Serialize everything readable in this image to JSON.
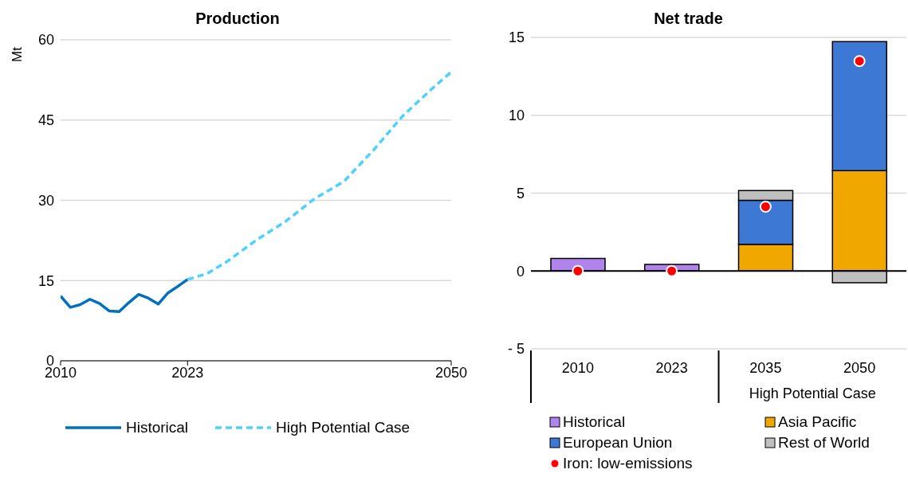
{
  "chart_data": [
    {
      "type": "line",
      "title": "Production",
      "ylabel": "Mt",
      "xlim": [
        2010,
        2050
      ],
      "xticks": [
        2010,
        2023,
        2050
      ],
      "ylim": [
        0,
        60
      ],
      "yticks": [
        0,
        15,
        30,
        45,
        60
      ],
      "grid": "y",
      "legend": "bottom",
      "series": [
        {
          "name": "Historical",
          "color": "#0070c0",
          "line_style": "solid",
          "x": [
            2010,
            2011,
            2012,
            2013,
            2014,
            2015,
            2016,
            2017,
            2018,
            2019,
            2020,
            2021,
            2022,
            2023
          ],
          "values": [
            12.1,
            10.0,
            10.5,
            11.5,
            10.7,
            9.3,
            9.2,
            10.9,
            12.4,
            11.7,
            10.6,
            12.7,
            13.9,
            15.2
          ]
        },
        {
          "name": "High Potential Case",
          "color": "#4dd2ff",
          "line_style": "dashed",
          "x": [
            2023,
            2025,
            2027,
            2030,
            2033,
            2036,
            2039,
            2042,
            2045,
            2048,
            2050
          ],
          "values": [
            15.2,
            16.3,
            18.5,
            22.5,
            26.0,
            30.3,
            33.5,
            39.3,
            45.7,
            50.8,
            54.0
          ]
        }
      ]
    },
    {
      "type": "bar",
      "title": "Net trade",
      "stacked": true,
      "categories": [
        "2010",
        "2023",
        "2035",
        "2050"
      ],
      "annotations": [
        "High Potential Case"
      ],
      "ylim": [
        -5,
        15
      ],
      "yticks": [
        {
          "value": -5,
          "label": "- 5"
        },
        0,
        5,
        10,
        15
      ],
      "grid": "y",
      "legend": "bottom",
      "series": [
        {
          "name": "Historical",
          "color": "#b084ec",
          "values": [
            0.81,
            0.42,
            null,
            null
          ]
        },
        {
          "name": "Asia Pacific",
          "color": "#f0a800",
          "values": [
            null,
            null,
            1.71,
            6.44
          ]
        },
        {
          "name": "European Union",
          "color": "#3c78d4",
          "values": [
            null,
            null,
            2.83,
            8.29
          ]
        },
        {
          "name": "Rest of World",
          "color": "#bfbfbf",
          "values": [
            null,
            null,
            0.63,
            -0.76
          ]
        },
        {
          "name": "Iron: low-emissions",
          "type": "scatter",
          "color": "#ff0000",
          "values": [
            0,
            0,
            4.13,
            13.48
          ]
        }
      ]
    }
  ]
}
